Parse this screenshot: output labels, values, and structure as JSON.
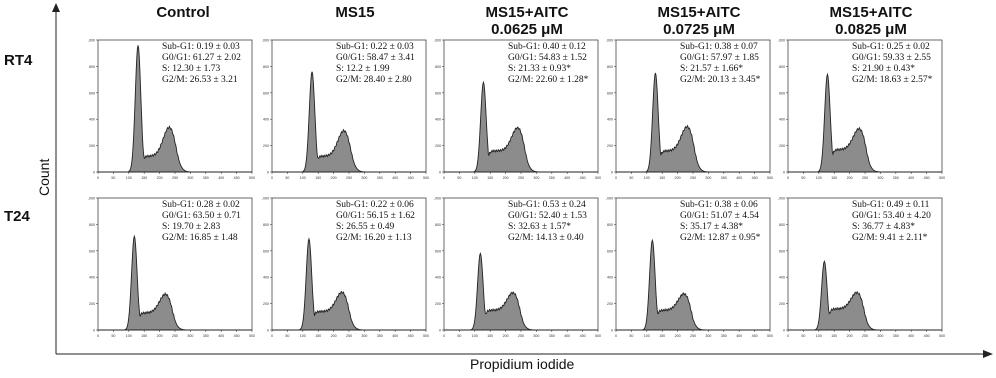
{
  "columns": [
    "Control",
    "MS15",
    "MS15+AITC\n0.0625 μM",
    "MS15+AITC\n0.0725 μM",
    "MS15+AITC\n0.0825 μM"
  ],
  "rows": [
    "RT4",
    "T24"
  ],
  "y_axis_label": "Count",
  "x_axis_label": "Propidium iodide",
  "chart_data": {
    "type": "area",
    "xlim": [
      0,
      500
    ],
    "ylim": [
      0,
      1000
    ],
    "x_ticks": [
      "0",
      "50",
      "100",
      "150",
      "200",
      "250",
      "300",
      "350",
      "400",
      "450",
      "500"
    ],
    "y_ticks": [
      "0",
      "200",
      "400",
      "600",
      "800",
      "1,000"
    ],
    "panels": [
      {
        "row": "RT4",
        "column": "Control",
        "stats": [
          "Sub-G1: 0.19 ± 0.03",
          "G0/G1: 61.27 ± 2.02",
          "S: 12.30 ± 1.73",
          "G2/M: 26.53 ± 3.21"
        ],
        "g1_peak": 960,
        "g1_pos": 130,
        "s_level": 120,
        "g2_peak": 260,
        "g2_pos": 232
      },
      {
        "row": "RT4",
        "column": "MS15",
        "stats": [
          "Sub-G1: 0.22 ± 0.03",
          "G0/G1: 58.47 ± 3.41",
          "S: 12.2 ± 1.99",
          "G2/M: 28.40 ± 2.80"
        ],
        "g1_peak": 760,
        "g1_pos": 130,
        "s_level": 120,
        "g2_peak": 230,
        "g2_pos": 234
      },
      {
        "row": "RT4",
        "column": "MS15+AITC 0.0625 μM",
        "stats": [
          "Sub-G1: 0.40 ± 0.12",
          "G0/G1: 54.83 ± 1.52",
          "S: 21.33 ± 0.93*",
          "G2/M: 22.60 ± 1.28*"
        ],
        "g1_peak": 680,
        "g1_pos": 128,
        "s_level": 160,
        "g2_peak": 210,
        "g2_pos": 240
      },
      {
        "row": "RT4",
        "column": "MS15+AITC 0.0725 μM",
        "stats": [
          "Sub-G1: 0.38 ± 0.07",
          "G0/G1: 57.97 ± 1.85",
          "S: 21.57 ± 1.66*",
          "G2/M: 20.13 ± 3.45*"
        ],
        "g1_peak": 750,
        "g1_pos": 128,
        "s_level": 160,
        "g2_peak": 220,
        "g2_pos": 232
      },
      {
        "row": "RT4",
        "column": "MS15+AITC 0.0825 μM",
        "stats": [
          "Sub-G1: 0.25 ± 0.02",
          "G0/G1: 59.33 ± 2.55",
          "S: 21.90 ± 0.43*",
          "G2/M: 18.63 ± 2.57*"
        ],
        "g1_peak": 740,
        "g1_pos": 128,
        "s_level": 170,
        "g2_peak": 190,
        "g2_pos": 232
      },
      {
        "row": "T24",
        "column": "Control",
        "stats": [
          "Sub-G1: 0.28 ± 0.02",
          "G0/G1: 63.50 ± 0.71",
          "S: 19.70 ± 2.83",
          "G2/M: 16.85 ± 1.48"
        ],
        "g1_peak": 710,
        "g1_pos": 118,
        "s_level": 130,
        "g2_peak": 170,
        "g2_pos": 220
      },
      {
        "row": "T24",
        "column": "MS15",
        "stats": [
          "Sub-G1: 0.22 ± 0.06",
          "G0/G1: 56.15 ± 1.62",
          "S: 26.55 ± 0.49",
          "G2/M: 16.20 ± 1.13"
        ],
        "g1_peak": 690,
        "g1_pos": 120,
        "s_level": 140,
        "g2_peak": 175,
        "g2_pos": 228
      },
      {
        "row": "T24",
        "column": "MS15+AITC 0.0625 μM",
        "stats": [
          "Sub-G1: 0.53 ± 0.24",
          "G0/G1: 52.40 ± 1.53",
          "S: 32.63 ± 1.57*",
          "G2/M: 14.13 ± 0.40"
        ],
        "g1_peak": 580,
        "g1_pos": 118,
        "s_level": 150,
        "g2_peak": 160,
        "g2_pos": 225
      },
      {
        "row": "T24",
        "column": "MS15+AITC 0.0725 μM",
        "stats": [
          "Sub-G1: 0.38 ± 0.06",
          "G0/G1: 51.07 ± 4.54",
          "S: 35.17 ± 4.38*",
          "G2/M: 12.87 ± 0.95*"
        ],
        "g1_peak": 680,
        "g1_pos": 118,
        "s_level": 150,
        "g2_peak": 150,
        "g2_pos": 222
      },
      {
        "row": "T24",
        "column": "MS15+AITC 0.0825 μM",
        "stats": [
          "Sub-G1: 0.49 ± 0.11",
          "G0/G1: 53.40 ± 4.20",
          "S: 36.77 ± 4.83*",
          "G2/M: 9.41 ± 2.11*"
        ],
        "g1_peak": 520,
        "g1_pos": 118,
        "s_level": 160,
        "g2_peak": 150,
        "g2_pos": 225
      }
    ]
  },
  "colors": {
    "fill": "#8c8c8c",
    "stroke": "#222222",
    "axis": "#444444"
  }
}
